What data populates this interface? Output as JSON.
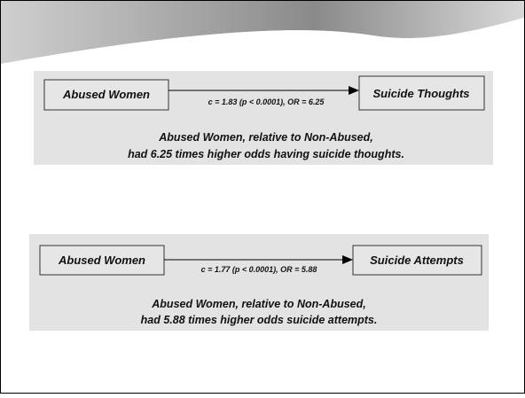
{
  "panels": [
    {
      "source": "Abused Women",
      "target": "Suicide Thoughts",
      "edge_label": "c = 1.83 (p < 0.0001), OR = 6.25",
      "caption": [
        "Abused Women, relative to Non-Abused,",
        "had 6.25 times higher odds having suicide thoughts."
      ]
    },
    {
      "source": "Abused Women",
      "target": "Suicide Attempts",
      "edge_label": "c = 1.77 (p < 0.0001), OR = 5.88",
      "caption": [
        "Abused Women, relative to Non-Abused,",
        "had 5.88 times higher odds suicide attempts."
      ]
    }
  ]
}
